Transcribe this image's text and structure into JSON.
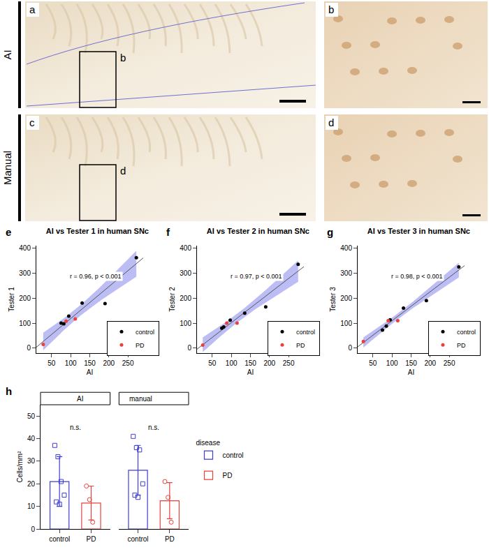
{
  "figure_panels": {
    "rows": [
      {
        "label": "AI",
        "panels": [
          "a",
          "b"
        ],
        "inset": "b"
      },
      {
        "label": "Manual",
        "panels": [
          "c",
          "d"
        ],
        "inset": "d"
      }
    ]
  },
  "chart_data": [
    {
      "type": "scatter",
      "panel": "e",
      "title": "AI vs Tester 1 in human SNc",
      "x_label": "AI",
      "y_label": "Tester 1",
      "annotation": "r = 0.96, p < 0.001",
      "xlim": [
        10,
        290
      ],
      "xticks": [
        50,
        100,
        150,
        200,
        250
      ],
      "ylim": [
        -20,
        410
      ],
      "yticks": [
        0,
        100,
        200,
        300,
        400
      ],
      "legend": "lower right",
      "series": [
        {
          "name": "control",
          "color": "#000000",
          "x": [
            75,
            82,
            95,
            130,
            190,
            272
          ],
          "values": [
            100,
            97,
            128,
            180,
            178,
            362
          ]
        },
        {
          "name": "PD",
          "color": "#e8413b",
          "x": [
            28,
            88,
            112
          ],
          "values": [
            15,
            108,
            117
          ]
        }
      ]
    },
    {
      "type": "scatter",
      "panel": "f",
      "title": "AI vs Tester 2 in human SNc",
      "x_label": "AI",
      "y_label": "Tester 2",
      "annotation": "r = 0.97, p < 0.001",
      "xlim": [
        10,
        290
      ],
      "xticks": [
        50,
        100,
        150,
        200,
        250
      ],
      "ylim": [
        -20,
        410
      ],
      "yticks": [
        0,
        100,
        200,
        300,
        400
      ],
      "legend": "lower right",
      "series": [
        {
          "name": "control",
          "color": "#000000",
          "x": [
            75,
            80,
            97,
            135,
            190,
            275
          ],
          "values": [
            80,
            85,
            112,
            140,
            165,
            335
          ]
        },
        {
          "name": "PD",
          "color": "#e8413b",
          "x": [
            25,
            88,
            115
          ],
          "values": [
            12,
            100,
            100
          ]
        }
      ]
    },
    {
      "type": "scatter",
      "panel": "g",
      "title": "AI vs Tester 3 in human SNc",
      "x_label": "AI",
      "y_label": "Tester 3",
      "annotation": "r = 0.98, p < 0.001",
      "xlim": [
        10,
        290
      ],
      "xticks": [
        50,
        100,
        150,
        200,
        250
      ],
      "ylim": [
        -20,
        410
      ],
      "yticks": [
        0,
        100,
        200,
        300,
        400
      ],
      "legend": "lower right",
      "series": [
        {
          "name": "control",
          "color": "#000000",
          "x": [
            75,
            85,
            95,
            130,
            190,
            275
          ],
          "values": [
            72,
            88,
            113,
            160,
            190,
            325
          ]
        },
        {
          "name": "PD",
          "color": "#e8413b",
          "x": [
            25,
            90,
            115
          ],
          "values": [
            27,
            110,
            110
          ]
        }
      ]
    },
    {
      "type": "bar",
      "panel": "h",
      "y_label": "Cells/mm²",
      "legend_title": "disease",
      "legend": "right",
      "categories": [
        "control",
        "PD"
      ],
      "ylim": [
        0,
        55
      ],
      "yticks": [
        0,
        10,
        20,
        30,
        40,
        50
      ],
      "series": [
        {
          "name": "control",
          "color": "#3c3cd8",
          "marker": "square-open"
        },
        {
          "name": "PD",
          "color": "#e8413b",
          "marker": "circle-open"
        }
      ],
      "facets": [
        {
          "label": "AI",
          "annotation": "n.s.",
          "values": [
            21,
            11.5
          ],
          "errors": [
            11,
            7.5
          ],
          "points": [
            [
              37,
              32,
              21,
              15,
              12,
              11
            ],
            [
              19,
              13,
              3
            ]
          ]
        },
        {
          "label": "manual",
          "annotation": "n.s.",
          "values": [
            26,
            12.5
          ],
          "errors": [
            11,
            8
          ],
          "points": [
            [
              41,
              36,
              35,
              20,
              15,
              14
            ],
            [
              21,
              14,
              3
            ]
          ]
        }
      ]
    }
  ]
}
